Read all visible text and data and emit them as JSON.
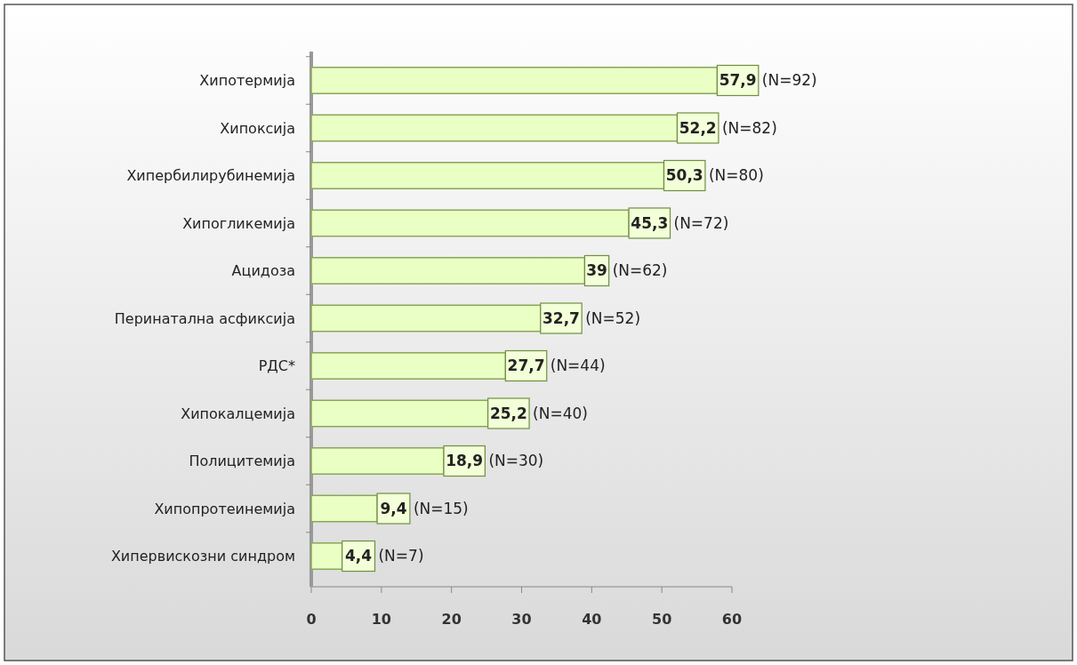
{
  "chart_data": {
    "type": "bar",
    "orientation": "horizontal",
    "categories": [
      "Хипотермија",
      "Хипоксија",
      "Хипербилирубинемија",
      "Хипогликемија",
      "Ацидоза",
      "Перинатална асфиксија",
      "РДС*",
      "Хипокалцемија",
      "Полицитемија",
      "Хипопротеинемија",
      "Хипервискозни синдром"
    ],
    "values": [
      57.9,
      52.2,
      50.3,
      45.3,
      39,
      32.7,
      27.7,
      25.2,
      18.9,
      9.4,
      4.4
    ],
    "value_labels": [
      "57,9",
      "52,2",
      "50,3",
      "45,3",
      "39",
      "32,7",
      "27,7",
      "25,2",
      "18,9",
      "9,4",
      "4,4"
    ],
    "color": "#eaffc4",
    "xlim": [
      0,
      60
    ],
    "xticks": [
      0,
      10,
      20,
      30,
      40,
      50,
      60
    ],
    "annotations": [
      {
        "text": "(N=92)",
        "x": 57.9,
        "y": "Хипотермија"
      },
      {
        "text": "(N=82)",
        "x": 52.2,
        "y": "Хипоксија"
      },
      {
        "text": "(N=80)",
        "x": 50.3,
        "y": "Хипербилирубинемија"
      },
      {
        "text": "(N=72)",
        "x": 45.3,
        "y": "Хипогликемија"
      },
      {
        "text": "(N=62)",
        "x": 39,
        "y": "Ацидоза"
      },
      {
        "text": "(N=52)",
        "x": 32.7,
        "y": "Перинатална асфиксија"
      },
      {
        "text": "(N=44)",
        "x": 27.7,
        "y": "РДС*"
      },
      {
        "text": "(N=40)",
        "x": 25.2,
        "y": "Хипокалцемија"
      },
      {
        "text": "(N=30)",
        "x": 18.9,
        "y": "Полицитемија"
      },
      {
        "text": "(N=15)",
        "x": 9.4,
        "y": "Хипопротеинемија"
      },
      {
        "text": "(N=7)",
        "x": 4.4,
        "y": "Хипервискозни синдром"
      }
    ]
  }
}
